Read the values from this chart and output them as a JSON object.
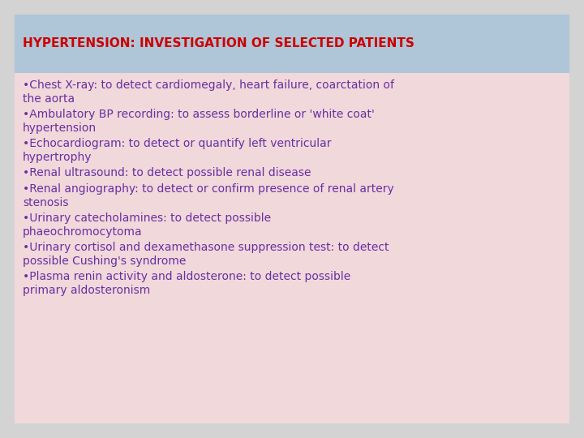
{
  "title": "HYPERTENSION: INVESTIGATION OF SELECTED PATIENTS",
  "title_color": "#cc0000",
  "title_bg_color": "#aec6d8",
  "body_bg_color": "#f0d8db",
  "outer_bg_color": "#d3d3d3",
  "bullet_color": "#6b2fa0",
  "bullets": [
    "•Chest X-ray: to detect cardiomegaly, heart failure, coarctation of\nthe aorta",
    "•Ambulatory BP recording: to assess borderline or 'white coat'\nhypertension",
    "•Echocardiogram: to detect or quantify left ventricular\nhypertrophy",
    "•Renal ultrasound: to detect possible renal disease",
    "•Renal angiography: to detect or confirm presence of renal artery\nstenosis",
    "•Urinary catecholamines: to detect possible\nphaeochromocytoma",
    "•Urinary cortisol and dexamethasone suppression test: to detect\npossible Cushing's syndrome",
    "•Plasma renin activity and aldosterone: to detect possible\nprimary aldosteronism"
  ],
  "title_fontsize": 11.0,
  "bullet_fontsize": 10.0,
  "figsize": [
    7.2,
    5.4
  ],
  "dpi": 100
}
